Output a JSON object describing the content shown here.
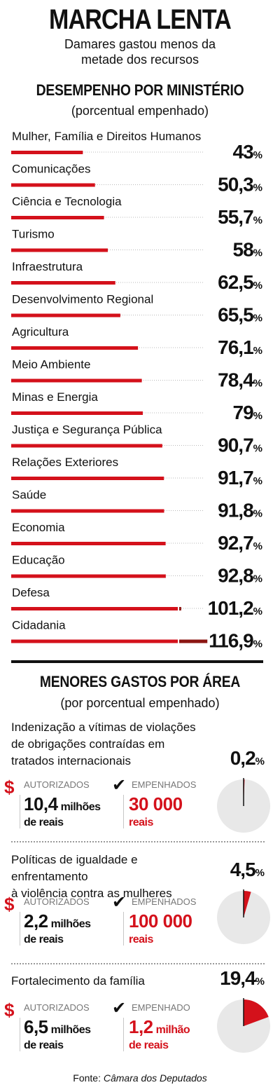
{
  "header": {
    "title": "MARCHA LENTA",
    "subtitle_line1": "Damares gastou menos da",
    "subtitle_line2": "metade dos recursos"
  },
  "section1": {
    "title": "DESEMPENHO POR MINISTÉRIO",
    "subtitle": "(porcentual empenhado)"
  },
  "section2": {
    "title": "MENORES GASTOS POR ÁREA",
    "subtitle": "(por porcentual empenhado)"
  },
  "colors": {
    "accent": "#d4111b",
    "over": "#8b1512",
    "pie_bg": "#e8e8e8"
  },
  "chart_data": {
    "type": "bar",
    "unit": "%",
    "categories": [
      "Mulher, Família e Direitos Humanos",
      "Comunicações",
      "Ciência e Tecnologia",
      "Turismo",
      "Infraestrutura",
      "Desenvolvimento Regional",
      "Agricultura",
      "Meio Ambiente",
      "Minas e Energia",
      "Justiça e Segurança Pública",
      "Relações Exteriores",
      "Saúde",
      "Economia",
      "Educação",
      "Defesa",
      "Cidadania"
    ],
    "values": [
      43,
      50.3,
      55.7,
      58,
      62.5,
      65.5,
      76.1,
      78.4,
      79,
      90.7,
      91.7,
      91.8,
      92.7,
      92.8,
      101.2,
      116.9
    ],
    "labels": [
      "43",
      "50,3",
      "55,7",
      "58",
      "62,5",
      "65,5",
      "76,1",
      "78,4",
      "79",
      "90,7",
      "91,7",
      "91,8",
      "92,7",
      "92,8",
      "101,2",
      "116,9"
    ]
  },
  "areas": [
    {
      "desc": [
        "Indenização a vítimas de violações",
        "de obrigações contraídas em",
        "tratados internacionais"
      ],
      "pct_value": 0.2,
      "pct_label": "0,2",
      "auth_label": "AUTORIZADOS",
      "auth_big": "10,4",
      "auth_unit": "milhões",
      "auth_line2": "de reais",
      "emp_label": "EMPENHADOS",
      "emp_big": "30 000",
      "emp_unit": "",
      "emp_line2": "reais"
    },
    {
      "desc": [
        "Políticas de igualdade e enfrentamento",
        "à violência contra as mulheres"
      ],
      "pct_value": 4.5,
      "pct_label": "4,5",
      "auth_label": "AUTORIZADOS",
      "auth_big": "2,2",
      "auth_unit": "milhões",
      "auth_line2": "de reais",
      "emp_label": "EMPENHADOS",
      "emp_big": "100 000",
      "emp_unit": "",
      "emp_line2": "reais"
    },
    {
      "desc": [
        "Fortalecimento da família"
      ],
      "pct_value": 19.4,
      "pct_label": "19,4",
      "auth_label": "AUTORIZADOS",
      "auth_big": "6,5",
      "auth_unit": "milhões",
      "auth_line2": "de reais",
      "emp_label": "EMPENHADO",
      "emp_big": "1,2",
      "emp_unit": "milhão",
      "emp_line2": "de reais"
    }
  ],
  "pct_sign": "%",
  "source": {
    "prefix": "Fonte: ",
    "name": "Câmara dos Deputados"
  }
}
